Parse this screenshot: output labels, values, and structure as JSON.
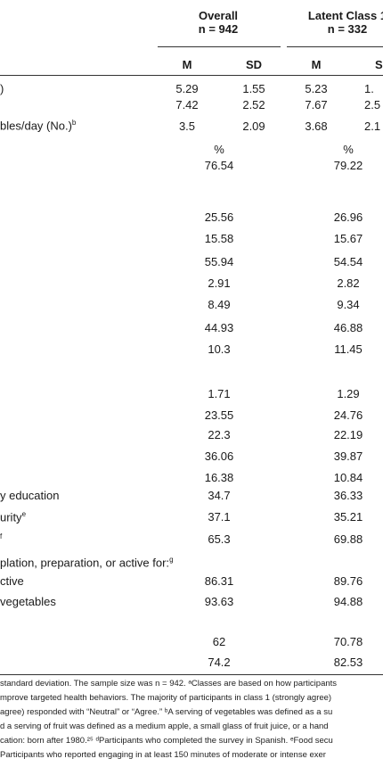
{
  "header": {
    "overall": {
      "title": "Overall",
      "n": "n = 942"
    },
    "latent": {
      "title": "Latent Class 1",
      "n": "n = 332"
    },
    "subheads": [
      "M",
      "SD",
      "M",
      "SD"
    ]
  },
  "labels": [
    {
      "text": ")",
      "sup": ""
    },
    {
      "text": "bles/day (No.)",
      "sup": "b"
    },
    {
      "text": "y education",
      "sup": ""
    },
    {
      "text": "urity",
      "sup": "e"
    },
    {
      "text": "",
      "sup": "f"
    },
    {
      "text": "plation, preparation, or active for:",
      "sup": "g"
    },
    {
      "text": "ctive",
      "sup": ""
    },
    {
      "text": "vegetables",
      "sup": ""
    }
  ],
  "mean_rows": [
    [
      "5.29",
      "1.55",
      "5.23",
      "1."
    ],
    [
      "7.42",
      "2.52",
      "7.67",
      "2.5"
    ],
    [
      "3.5",
      "2.09",
      "3.68",
      "2.1"
    ]
  ],
  "pct_header": [
    "%",
    "%"
  ],
  "pct_rows": [
    [
      "76.54",
      "79.22"
    ],
    [
      "25.56",
      "26.96"
    ],
    [
      "15.58",
      "15.67"
    ],
    [
      "55.94",
      "54.54"
    ],
    [
      "2.91",
      "2.82"
    ],
    [
      "8.49",
      "9.34"
    ],
    [
      "44.93",
      "46.88"
    ],
    [
      "10.3",
      "11.45"
    ],
    [
      "1.71",
      "1.29"
    ],
    [
      "23.55",
      "24.76"
    ],
    [
      "22.3",
      "22.19"
    ],
    [
      "36.06",
      "39.87"
    ],
    [
      "16.38",
      "10.84"
    ],
    [
      "34.7",
      "36.33"
    ],
    [
      "37.1",
      "35.21"
    ],
    [
      "65.3",
      "69.88"
    ],
    [
      "86.31",
      "89.76"
    ],
    [
      "93.63",
      "94.88"
    ],
    [
      "62",
      "70.78"
    ],
    [
      "74.2",
      "82.53"
    ]
  ],
  "footnotes": [
    "standard deviation. The sample size was n = 942. ᵃClasses are based on how participants",
    "mprove targeted health behaviors. The majority of participants in class 1 (strongly agree)",
    "agree) responded with “Neutral” or “Agree.” ᵇA serving of vegetables was defined as a su",
    "d a serving of fruit was defined as a medium apple, a small glass of fruit juice, or a hand",
    "cation: born after 1980.²⁵ ᵈParticipants who completed the survey in Spanish. ᵉFood secu",
    "Participants who reported engaging in at least 150 minutes of moderate or intense exer"
  ]
}
